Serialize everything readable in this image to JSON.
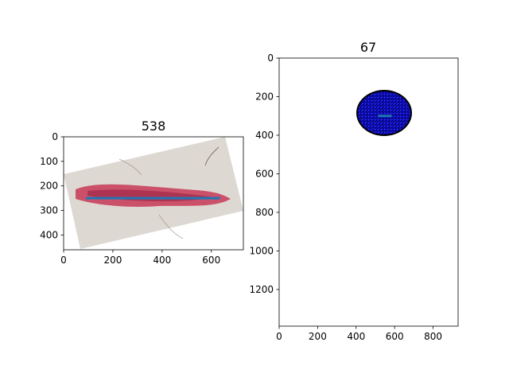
{
  "chart_data": [
    {
      "type": "image",
      "title": "538",
      "xlim": [
        0,
        730
      ],
      "ylim": [
        460,
        0
      ],
      "xticks": [
        0,
        200,
        400,
        600
      ],
      "yticks": [
        0,
        100,
        200,
        300,
        400
      ],
      "image_description": "rotated skin photo with red elongated wound",
      "line": {
        "x": [
          90,
          635
        ],
        "y": [
          250,
          250
        ],
        "color": "#1f77b4"
      }
    },
    {
      "type": "image",
      "title": "67",
      "xlim": [
        0,
        930
      ],
      "ylim": [
        1390,
        0
      ],
      "xticks": [
        0,
        200,
        400,
        600,
        800
      ],
      "yticks": [
        0,
        200,
        400,
        600,
        800,
        1000,
        1200
      ],
      "image_description": "blue textured ellipse on black outline",
      "line": {
        "x": [
          515,
          585
        ],
        "y": [
          300,
          300
        ],
        "color": "#1f77b4"
      }
    }
  ]
}
